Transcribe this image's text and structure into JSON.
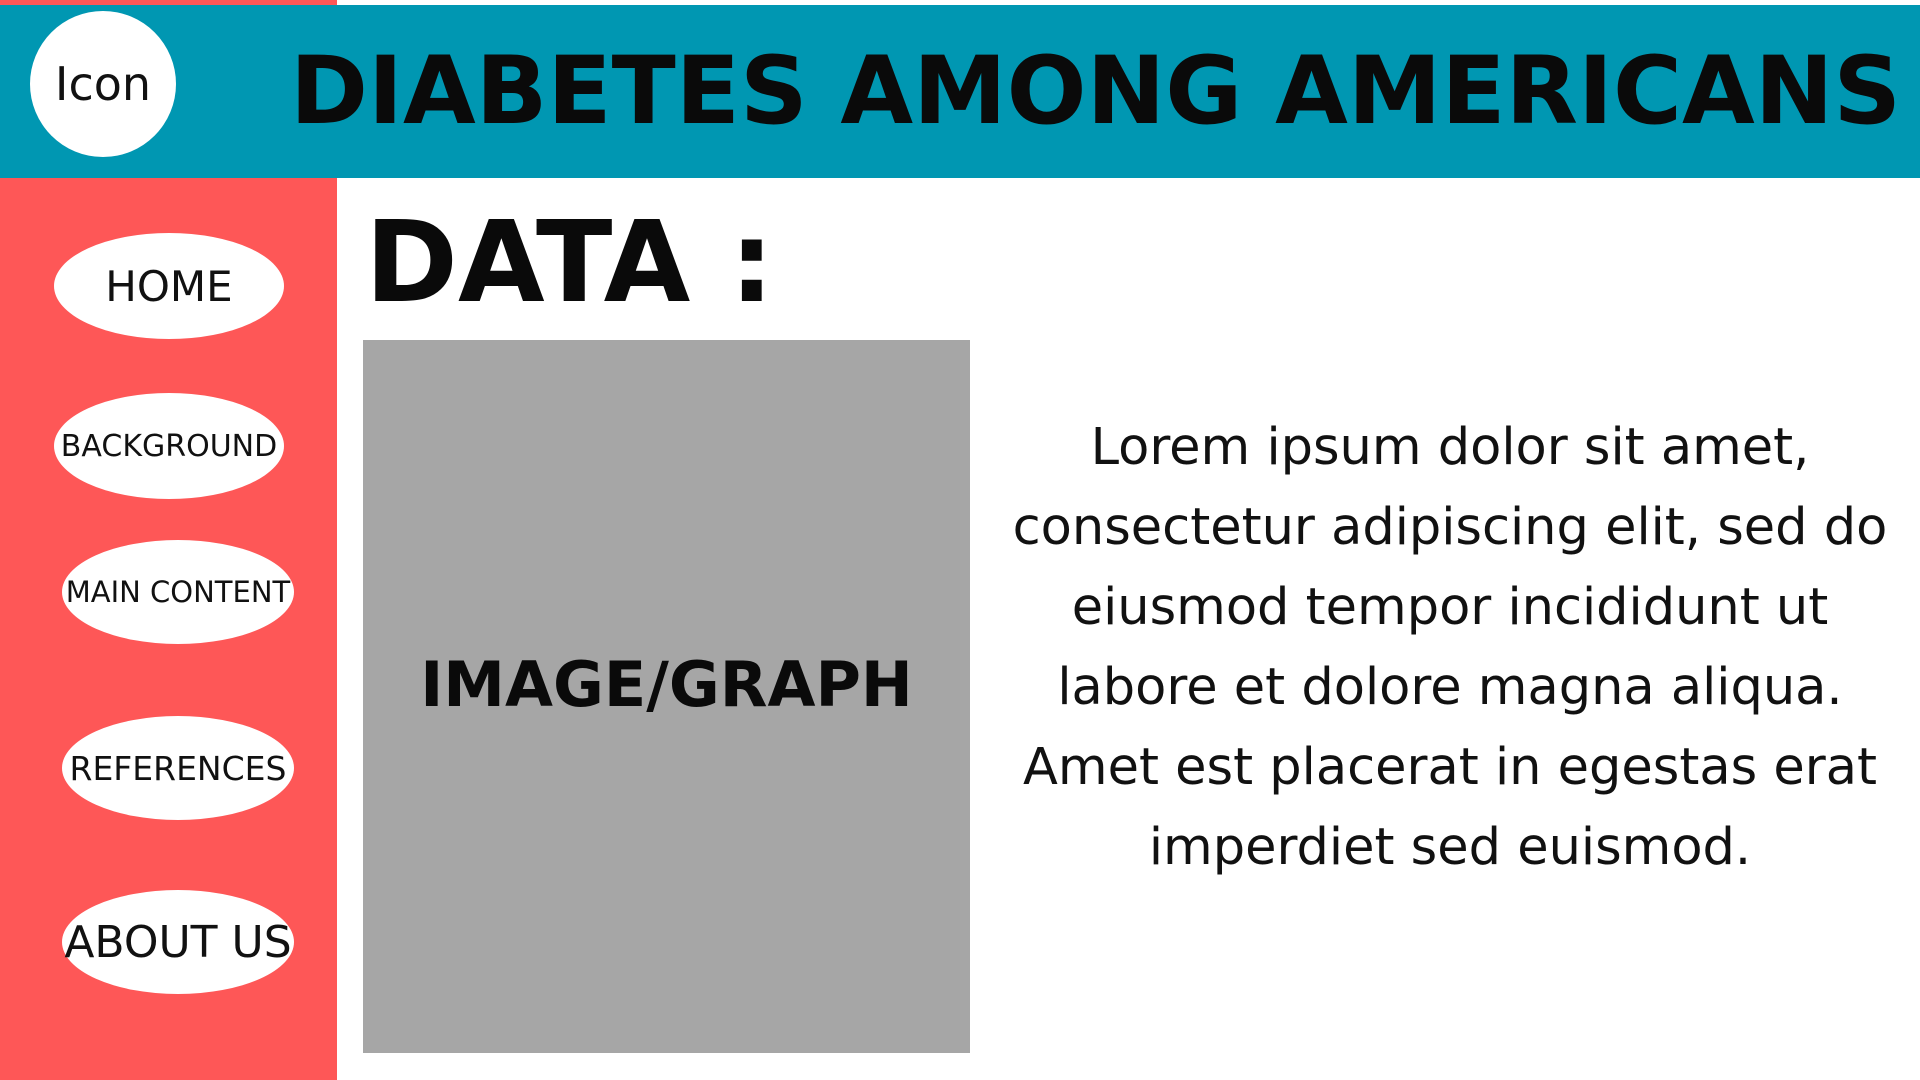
{
  "header": {
    "logo_text": "Icon",
    "title": "DIABETES AMONG AMERICANS"
  },
  "sidebar": {
    "items": [
      {
        "label": "HOME"
      },
      {
        "label": "BACKGROUND"
      },
      {
        "label": "MAIN CONTENT"
      },
      {
        "label": "REFERENCES"
      },
      {
        "label": "ABOUT US"
      }
    ]
  },
  "main": {
    "heading": "DATA :",
    "media_label": "IMAGE/GRAPH",
    "body_text": "Lorem ipsum dolor sit amet, consectetur adipiscing elit, sed do eiusmod tempor incididunt ut labore et dolore magna aliqua. Amet est placerat in egestas erat imperdiet sed euismod."
  },
  "colors": {
    "header_bg": "#0097b2",
    "sidebar_bg": "#fe5757",
    "placeholder_bg": "#a6a6a6",
    "text": "#0a0a0a"
  }
}
